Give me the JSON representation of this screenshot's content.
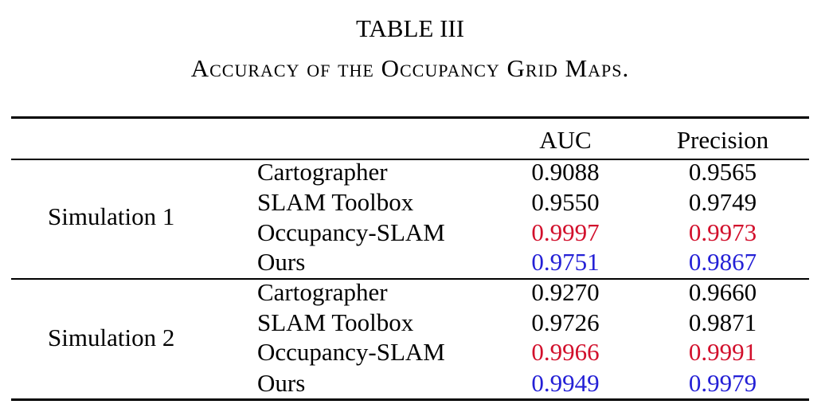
{
  "caption": {
    "title": "TABLE III",
    "subtitle": "Accuracy of the Occupancy Grid Maps."
  },
  "table": {
    "columns": [
      "AUC",
      "Precision"
    ],
    "groups": [
      {
        "label": "Simulation 1",
        "rows": [
          {
            "method": "Cartographer",
            "auc": "0.9088",
            "precision": "0.9565"
          },
          {
            "method": "SLAM Toolbox",
            "auc": "0.9550",
            "precision": "0.9749"
          },
          {
            "method": "Occupancy-SLAM",
            "auc": "0.9997",
            "precision": "0.9973"
          },
          {
            "method": "Ours",
            "auc": "0.9751",
            "precision": "0.9867"
          }
        ]
      },
      {
        "label": "Simulation 2",
        "rows": [
          {
            "method": "Cartographer",
            "auc": "0.9270",
            "precision": "0.9660"
          },
          {
            "method": "SLAM Toolbox",
            "auc": "0.9726",
            "precision": "0.9871"
          },
          {
            "method": "Occupancy-SLAM",
            "auc": "0.9966",
            "precision": "0.9991"
          },
          {
            "method": "Ours",
            "auc": "0.9949",
            "precision": "0.9979"
          }
        ]
      }
    ]
  },
  "colors": {
    "best": "#d2102c",
    "second_best": "#2420d6",
    "text": "#000000"
  }
}
